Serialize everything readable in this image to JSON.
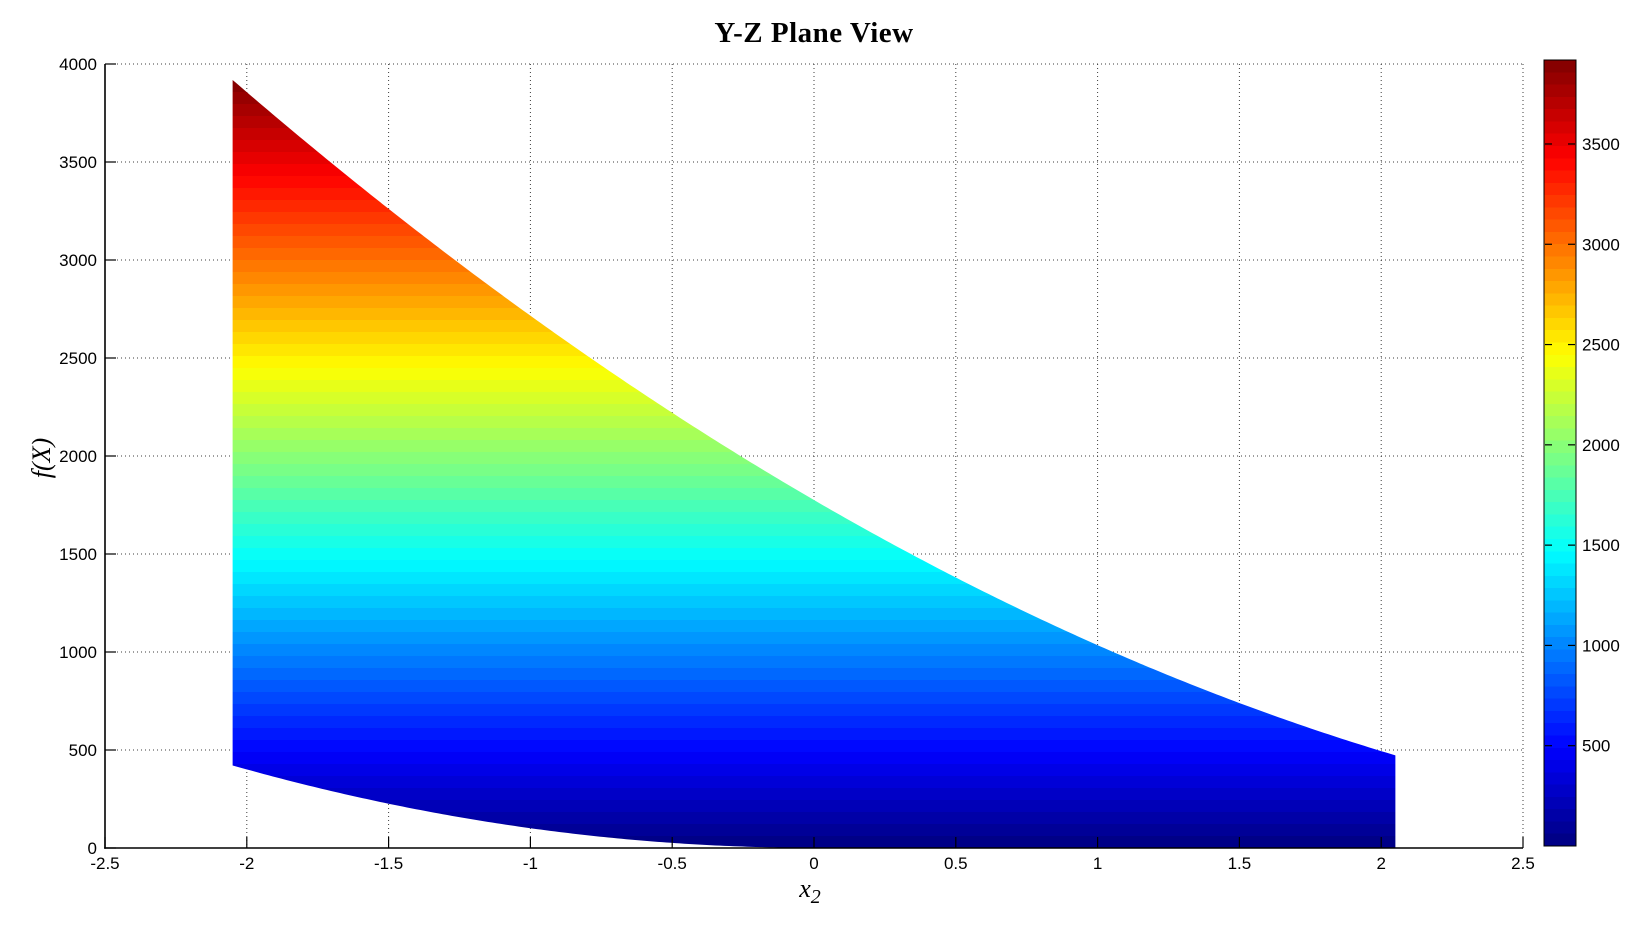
{
  "figure": {
    "title": "Y-Z Plane View",
    "x_axis_label_base": "x",
    "x_axis_label_subscript": "2",
    "y_axis_label": "f(X)"
  },
  "axes": {
    "x": {
      "min": -2.5,
      "max": 2.5,
      "ticks": [
        -2.5,
        -2,
        -1.5,
        -1,
        -0.5,
        0,
        0.5,
        1,
        1.5,
        2,
        2.5
      ],
      "tick_labels": [
        "-2.5",
        "-2",
        "-1.5",
        "-1",
        "-0.5",
        "0",
        "0.5",
        "1",
        "1.5",
        "2",
        "2.5"
      ]
    },
    "y": {
      "min": 0,
      "max": 4000,
      "ticks": [
        0,
        500,
        1000,
        1500,
        2000,
        2500,
        3000,
        3500,
        4000
      ],
      "tick_labels": [
        "0",
        "500",
        "1000",
        "1500",
        "2000",
        "2500",
        "3000",
        "3500",
        "4000"
      ]
    },
    "grid_style": "dotted"
  },
  "colorbar": {
    "min": 0,
    "max": 3918.7,
    "levels": 64,
    "colormap": "jet",
    "ticks": [
      500,
      1000,
      1500,
      2000,
      2500,
      3000,
      3500
    ],
    "tick_labels": [
      "500",
      "1000",
      "1500",
      "2000",
      "2500",
      "3000",
      "3500"
    ]
  },
  "chart_data": {
    "type": "area",
    "title": "Y-Z Plane View",
    "xlabel": "x_2",
    "ylabel": "f(X)",
    "xlim": [
      -2.5,
      2.5
    ],
    "ylim": [
      0,
      4000
    ],
    "grid": true,
    "legend": "none",
    "color_encodes": "f(X) height mapped through jet colormap over [0, 3918.7]",
    "region": {
      "x2_min": -2.05,
      "x2_max": 2.05,
      "top_boundary": {
        "model": "quadratic",
        "a": 100,
        "x_vertex": 4.2025,
        "c": 9.3025
      },
      "bottom_boundary": {
        "model": "piecewise",
        "neg_a": 100,
        "neg_c": 1,
        "pos": "(1-sqrt(x2))^2"
      },
      "samples": {
        "x2": [
          -2.05,
          -1.64,
          -1.23,
          -0.82,
          -0.41,
          0,
          0.41,
          0.82,
          1.23,
          1.64,
          2.05
        ],
        "f_top": [
          3918.7,
          3422.8,
          2960.5,
          2531.8,
          2136.8,
          1775.4,
          1447.6,
          1153.4,
          892.9,
          665.9,
          472.6
        ],
        "f_bottom": [
          421.3,
          270.0,
          152.3,
          68.2,
          17.8,
          1.0,
          0.1,
          0.0,
          0.0,
          0.1,
          0.2
        ]
      }
    }
  },
  "colors": {
    "background": "#ffffff",
    "axis": "#000000",
    "grid": "#3c3c3c",
    "text": "#000000",
    "jet_anchors": [
      {
        "v": 0.0,
        "hex": "#000080"
      },
      {
        "v": 0.125,
        "hex": "#0000ff"
      },
      {
        "v": 0.375,
        "hex": "#00ffff"
      },
      {
        "v": 0.625,
        "hex": "#ffff00"
      },
      {
        "v": 0.875,
        "hex": "#ff0000"
      },
      {
        "v": 1.0,
        "hex": "#800000"
      }
    ]
  }
}
